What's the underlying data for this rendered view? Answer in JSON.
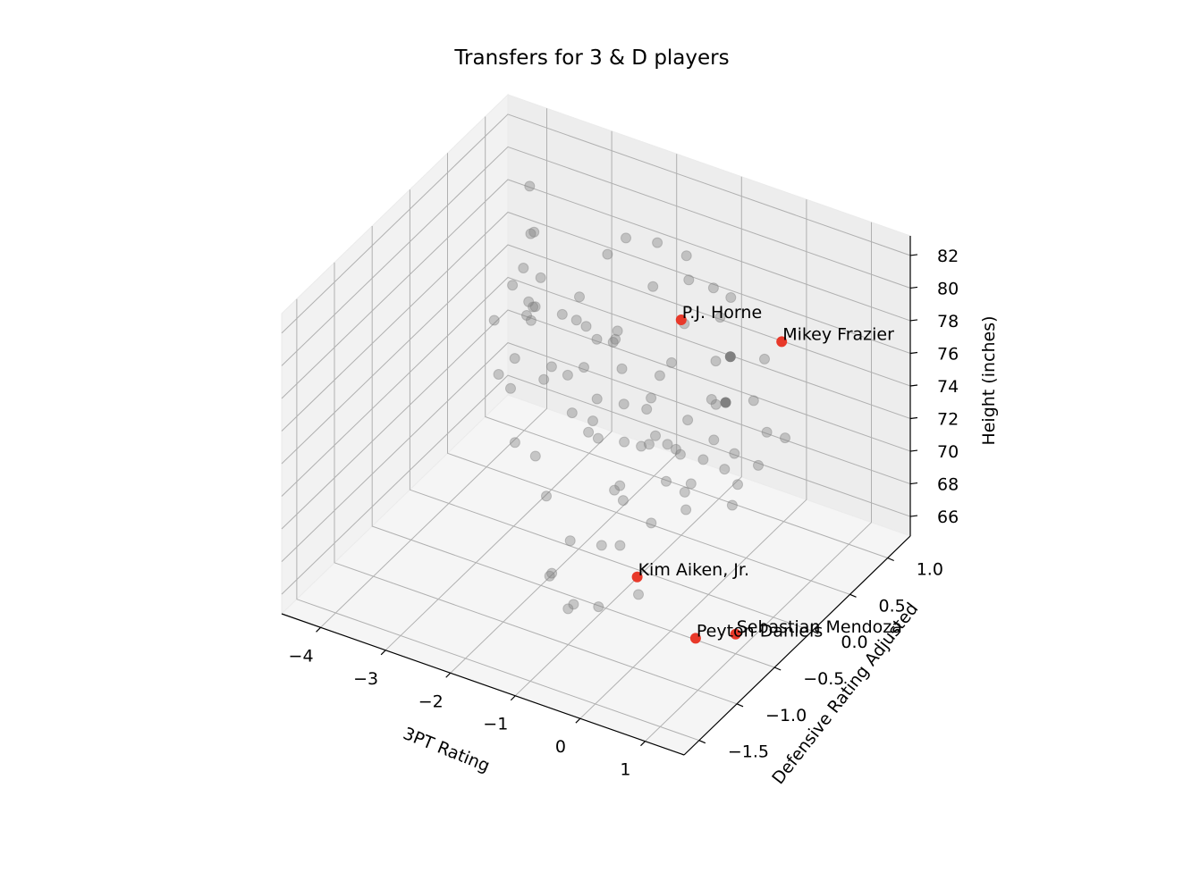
{
  "chart_data": {
    "type": "scatter",
    "dimensions": 3,
    "title": "Transfers for 3 & D players",
    "xlabel": "3PT Rating",
    "ylabel": "Defensive Rating Adjusted",
    "zlabel": "Height (inches)",
    "xlim": [
      -4.6,
      1.6
    ],
    "ylim": [
      -1.7,
      1.3
    ],
    "zlim": [
      64.8,
      83.2
    ],
    "xticks": [
      -4,
      -3,
      -2,
      -1,
      0,
      1
    ],
    "xtick_labels": [
      "−4",
      "−3",
      "−2",
      "−1",
      "0",
      "1"
    ],
    "yticks": [
      -1.5,
      -1.0,
      -0.5,
      0.0,
      0.5,
      1.0
    ],
    "ytick_labels": [
      "−1.5",
      "−1.0",
      "−0.5",
      "0.0",
      "0.5",
      "1.0"
    ],
    "zticks": [
      66,
      68,
      70,
      72,
      74,
      76,
      78,
      80,
      82
    ],
    "ztick_labels": [
      "66",
      "68",
      "70",
      "72",
      "74",
      "76",
      "78",
      "80",
      "82"
    ],
    "grid": true,
    "colors": {
      "background_points": "#808080",
      "highlighted_points": "#e8392a",
      "pane": "#f2f2f2",
      "grid": "#b0b0b0"
    },
    "series": [
      {
        "role": "all_players",
        "color": "#808080",
        "alpha": 0.4,
        "points": [
          [
            -3.8,
            0.9,
            80.5
          ],
          [
            -3.5,
            0.7,
            79
          ],
          [
            -3.9,
            1.0,
            77
          ],
          [
            -3.2,
            0.3,
            79
          ],
          [
            -3.6,
            0.5,
            76.5
          ],
          [
            -3.4,
            0.6,
            75
          ],
          [
            -2.9,
            0.2,
            77.5
          ],
          [
            -3.1,
            0.1,
            74.5
          ],
          [
            -3.7,
            0.8,
            74
          ],
          [
            -2.8,
            0.0,
            78
          ],
          [
            -2.5,
            -0.2,
            79
          ],
          [
            -2.6,
            0.3,
            77
          ],
          [
            -2.3,
            -0.1,
            76
          ],
          [
            -2.7,
            -0.3,
            75
          ],
          [
            -2.4,
            0.2,
            74
          ],
          [
            -2.1,
            0.0,
            73
          ],
          [
            -2.2,
            -0.4,
            72
          ],
          [
            -2.0,
            0.1,
            78
          ],
          [
            -1.8,
            -0.2,
            80
          ],
          [
            -1.9,
            0.4,
            76
          ],
          [
            -1.6,
            -0.1,
            75
          ],
          [
            -1.7,
            0.2,
            77
          ],
          [
            -1.5,
            -0.3,
            74
          ],
          [
            -1.4,
            0.0,
            79
          ],
          [
            -1.3,
            0.3,
            73
          ],
          [
            -1.2,
            -0.5,
            76
          ],
          [
            -1.1,
            -0.2,
            78
          ],
          [
            -1.0,
            0.1,
            75
          ],
          [
            -0.9,
            -0.4,
            72
          ],
          [
            -0.8,
            0.2,
            77
          ],
          [
            -0.7,
            -0.1,
            74
          ],
          [
            -0.6,
            -0.6,
            76
          ],
          [
            -0.5,
            0.0,
            73
          ],
          [
            -0.4,
            -0.3,
            79
          ],
          [
            -0.3,
            0.3,
            75
          ],
          [
            -0.2,
            -0.2,
            74
          ],
          [
            -0.1,
            -0.7,
            77
          ],
          [
            0.0,
            0.1,
            76
          ],
          [
            0.1,
            -0.4,
            73
          ],
          [
            0.2,
            -0.1,
            75
          ],
          [
            0.3,
            -0.8,
            78
          ],
          [
            0.4,
            0.0,
            74
          ],
          [
            0.5,
            -0.5,
            76
          ],
          [
            0.6,
            -0.2,
            72
          ],
          [
            0.7,
            -0.9,
            75
          ],
          [
            -2.5,
            0.5,
            73
          ],
          [
            -2.0,
            0.6,
            71
          ],
          [
            -1.5,
            0.4,
            70
          ],
          [
            -1.0,
            0.3,
            69
          ],
          [
            -0.5,
            0.2,
            70
          ],
          [
            -1.8,
            -0.6,
            71
          ],
          [
            -1.2,
            -0.8,
            70
          ],
          [
            -0.6,
            -0.9,
            71
          ],
          [
            -0.2,
            -1.0,
            72
          ],
          [
            0.2,
            -1.1,
            70
          ],
          [
            -1.4,
            -0.9,
            68
          ],
          [
            -0.8,
            -1.1,
            68
          ],
          [
            -0.3,
            -1.2,
            69
          ],
          [
            -1.6,
            -0.7,
            67
          ],
          [
            -1.0,
            -1.0,
            67
          ],
          [
            -2.2,
            0.8,
            80
          ],
          [
            -1.6,
            0.7,
            81
          ],
          [
            -1.0,
            0.6,
            80
          ],
          [
            -0.4,
            0.5,
            79
          ],
          [
            0.4,
            0.4,
            78
          ],
          [
            -2.8,
            0.7,
            76
          ],
          [
            -3.0,
            0.4,
            72
          ],
          [
            -2.6,
            0.9,
            78
          ],
          [
            -1.9,
            0.9,
            77
          ],
          [
            -1.3,
            0.8,
            76
          ],
          [
            -0.7,
            0.7,
            75
          ],
          [
            0.0,
            0.6,
            74
          ],
          [
            0.6,
            0.5,
            73
          ],
          [
            -0.9,
            0.5,
            72
          ],
          [
            -0.3,
            -0.5,
            71
          ],
          [
            -1.7,
            0.0,
            72
          ],
          [
            -1.1,
            -0.3,
            71
          ],
          [
            -2.4,
            -0.5,
            73
          ],
          [
            -0.1,
            0.3,
            71
          ],
          [
            0.8,
            -0.3,
            74
          ],
          [
            -3.3,
            0.0,
            77
          ],
          [
            -3.0,
            -0.2,
            75
          ],
          [
            -2.7,
            0.1,
            80
          ],
          [
            -2.3,
            0.5,
            75
          ],
          [
            -1.5,
            1.0,
            79
          ],
          [
            0.9,
            0.0,
            76
          ],
          [
            1.0,
            -0.2,
            75
          ],
          [
            -0.7,
            0.9,
            78
          ],
          [
            -1.2,
            1.1,
            77
          ],
          [
            -0.5,
            -0.7,
            73
          ]
        ]
      },
      {
        "role": "emphasized_players",
        "color": "#808080",
        "alpha": 1.0,
        "points": [
          [
            -0.3,
            0.55,
            76.5
          ],
          [
            -0.2,
            0.4,
            74.5
          ]
        ]
      },
      {
        "role": "highlighted_players",
        "color": "#e8392a",
        "alpha": 1.0,
        "points": [
          {
            "label": "P.J. Horne",
            "x": -1.0,
            "y": 0.5,
            "z": 78
          },
          {
            "label": "Mikey Frazier",
            "x": 0.2,
            "y": 0.8,
            "z": 77
          },
          {
            "label": "Kim Aiken, Jr.",
            "x": -0.4,
            "y": -0.6,
            "z": 68
          },
          {
            "label": "Peyton Daniels",
            "x": 0.5,
            "y": -0.6,
            "z": 65.5
          },
          {
            "label": "Sebastian Mendoza",
            "x": 1.0,
            "y": -0.5,
            "z": 66
          }
        ]
      }
    ]
  }
}
